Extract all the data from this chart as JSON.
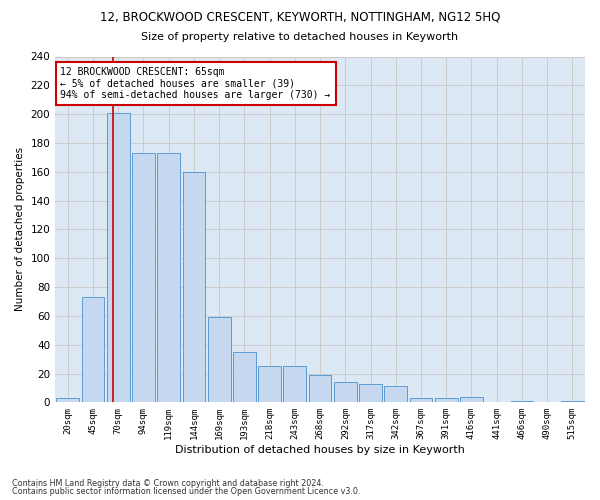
{
  "title1": "12, BROCKWOOD CRESCENT, KEYWORTH, NOTTINGHAM, NG12 5HQ",
  "title2": "Size of property relative to detached houses in Keyworth",
  "xlabel": "Distribution of detached houses by size in Keyworth",
  "ylabel": "Number of detached properties",
  "categories": [
    "20sqm",
    "45sqm",
    "70sqm",
    "94sqm",
    "119sqm",
    "144sqm",
    "169sqm",
    "193sqm",
    "218sqm",
    "243sqm",
    "268sqm",
    "292sqm",
    "317sqm",
    "342sqm",
    "367sqm",
    "391sqm",
    "416sqm",
    "441sqm",
    "466sqm",
    "490sqm",
    "515sqm"
  ],
  "values": [
    3,
    73,
    201,
    173,
    173,
    160,
    59,
    35,
    25,
    25,
    19,
    14,
    13,
    11,
    3,
    3,
    4,
    0,
    1,
    0,
    1
  ],
  "bar_color": "#c5d8f0",
  "bar_edge_color": "#5b9bd5",
  "annotation_line1": "12 BROCKWOOD CRESCENT: 65sqm",
  "annotation_line2": "← 5% of detached houses are smaller (39)",
  "annotation_line3": "94% of semi-detached houses are larger (730) →",
  "annotation_box_color": "#ffffff",
  "annotation_box_edge": "#cc0000",
  "red_line_color": "#cc0000",
  "grid_color": "#cccccc",
  "background_color": "#dce9f5",
  "ylim": [
    0,
    240
  ],
  "yticks": [
    0,
    20,
    40,
    60,
    80,
    100,
    120,
    140,
    160,
    180,
    200,
    220,
    240
  ],
  "footer1": "Contains HM Land Registry data © Crown copyright and database right 2024.",
  "footer2": "Contains public sector information licensed under the Open Government Licence v3.0."
}
